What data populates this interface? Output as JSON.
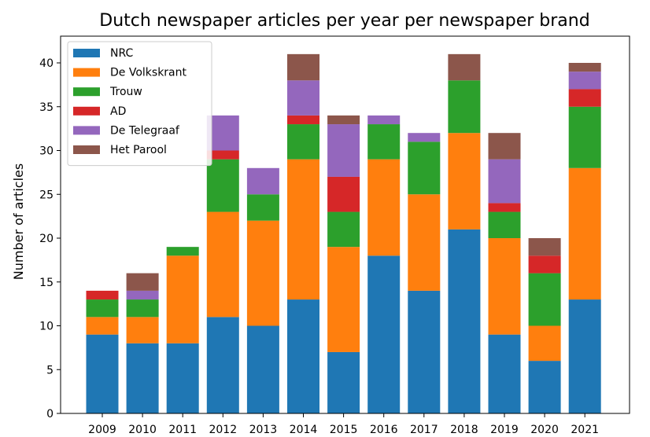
{
  "chart_data": {
    "type": "bar",
    "stacked": true,
    "title": "Dutch newspaper articles per year per newspaper brand",
    "xlabel": "",
    "ylabel": "Number of articles",
    "ylim": [
      0,
      43
    ],
    "yticks": [
      0,
      5,
      10,
      15,
      20,
      25,
      30,
      35,
      40
    ],
    "grid": false,
    "legend_position": "top-left",
    "categories": [
      "2009",
      "2010",
      "2011",
      "2012",
      "2013",
      "2014",
      "2015",
      "2016",
      "2017",
      "2018",
      "2019",
      "2020",
      "2021"
    ],
    "series": [
      {
        "name": "NRC",
        "color": "#1f77b4",
        "values": [
          9,
          8,
          8,
          11,
          10,
          13,
          7,
          18,
          14,
          21,
          9,
          6,
          13
        ]
      },
      {
        "name": "De Volkskrant",
        "color": "#ff7f0e",
        "values": [
          2,
          3,
          10,
          12,
          12,
          16,
          12,
          11,
          11,
          11,
          11,
          4,
          15
        ]
      },
      {
        "name": "Trouw",
        "color": "#2ca02c",
        "values": [
          2,
          2,
          1,
          6,
          3,
          4,
          4,
          4,
          6,
          6,
          3,
          6,
          7
        ]
      },
      {
        "name": "AD",
        "color": "#d62728",
        "values": [
          1,
          0,
          0,
          1,
          0,
          1,
          4,
          0,
          0,
          0,
          1,
          2,
          2
        ]
      },
      {
        "name": "De Telegraaf",
        "color": "#9467bd",
        "values": [
          0,
          1,
          0,
          4,
          3,
          4,
          6,
          1,
          1,
          0,
          5,
          0,
          2
        ]
      },
      {
        "name": "Het Parool",
        "color": "#8c564b",
        "values": [
          0,
          2,
          0,
          0,
          0,
          3,
          1,
          0,
          0,
          3,
          3,
          2,
          1
        ]
      }
    ]
  }
}
